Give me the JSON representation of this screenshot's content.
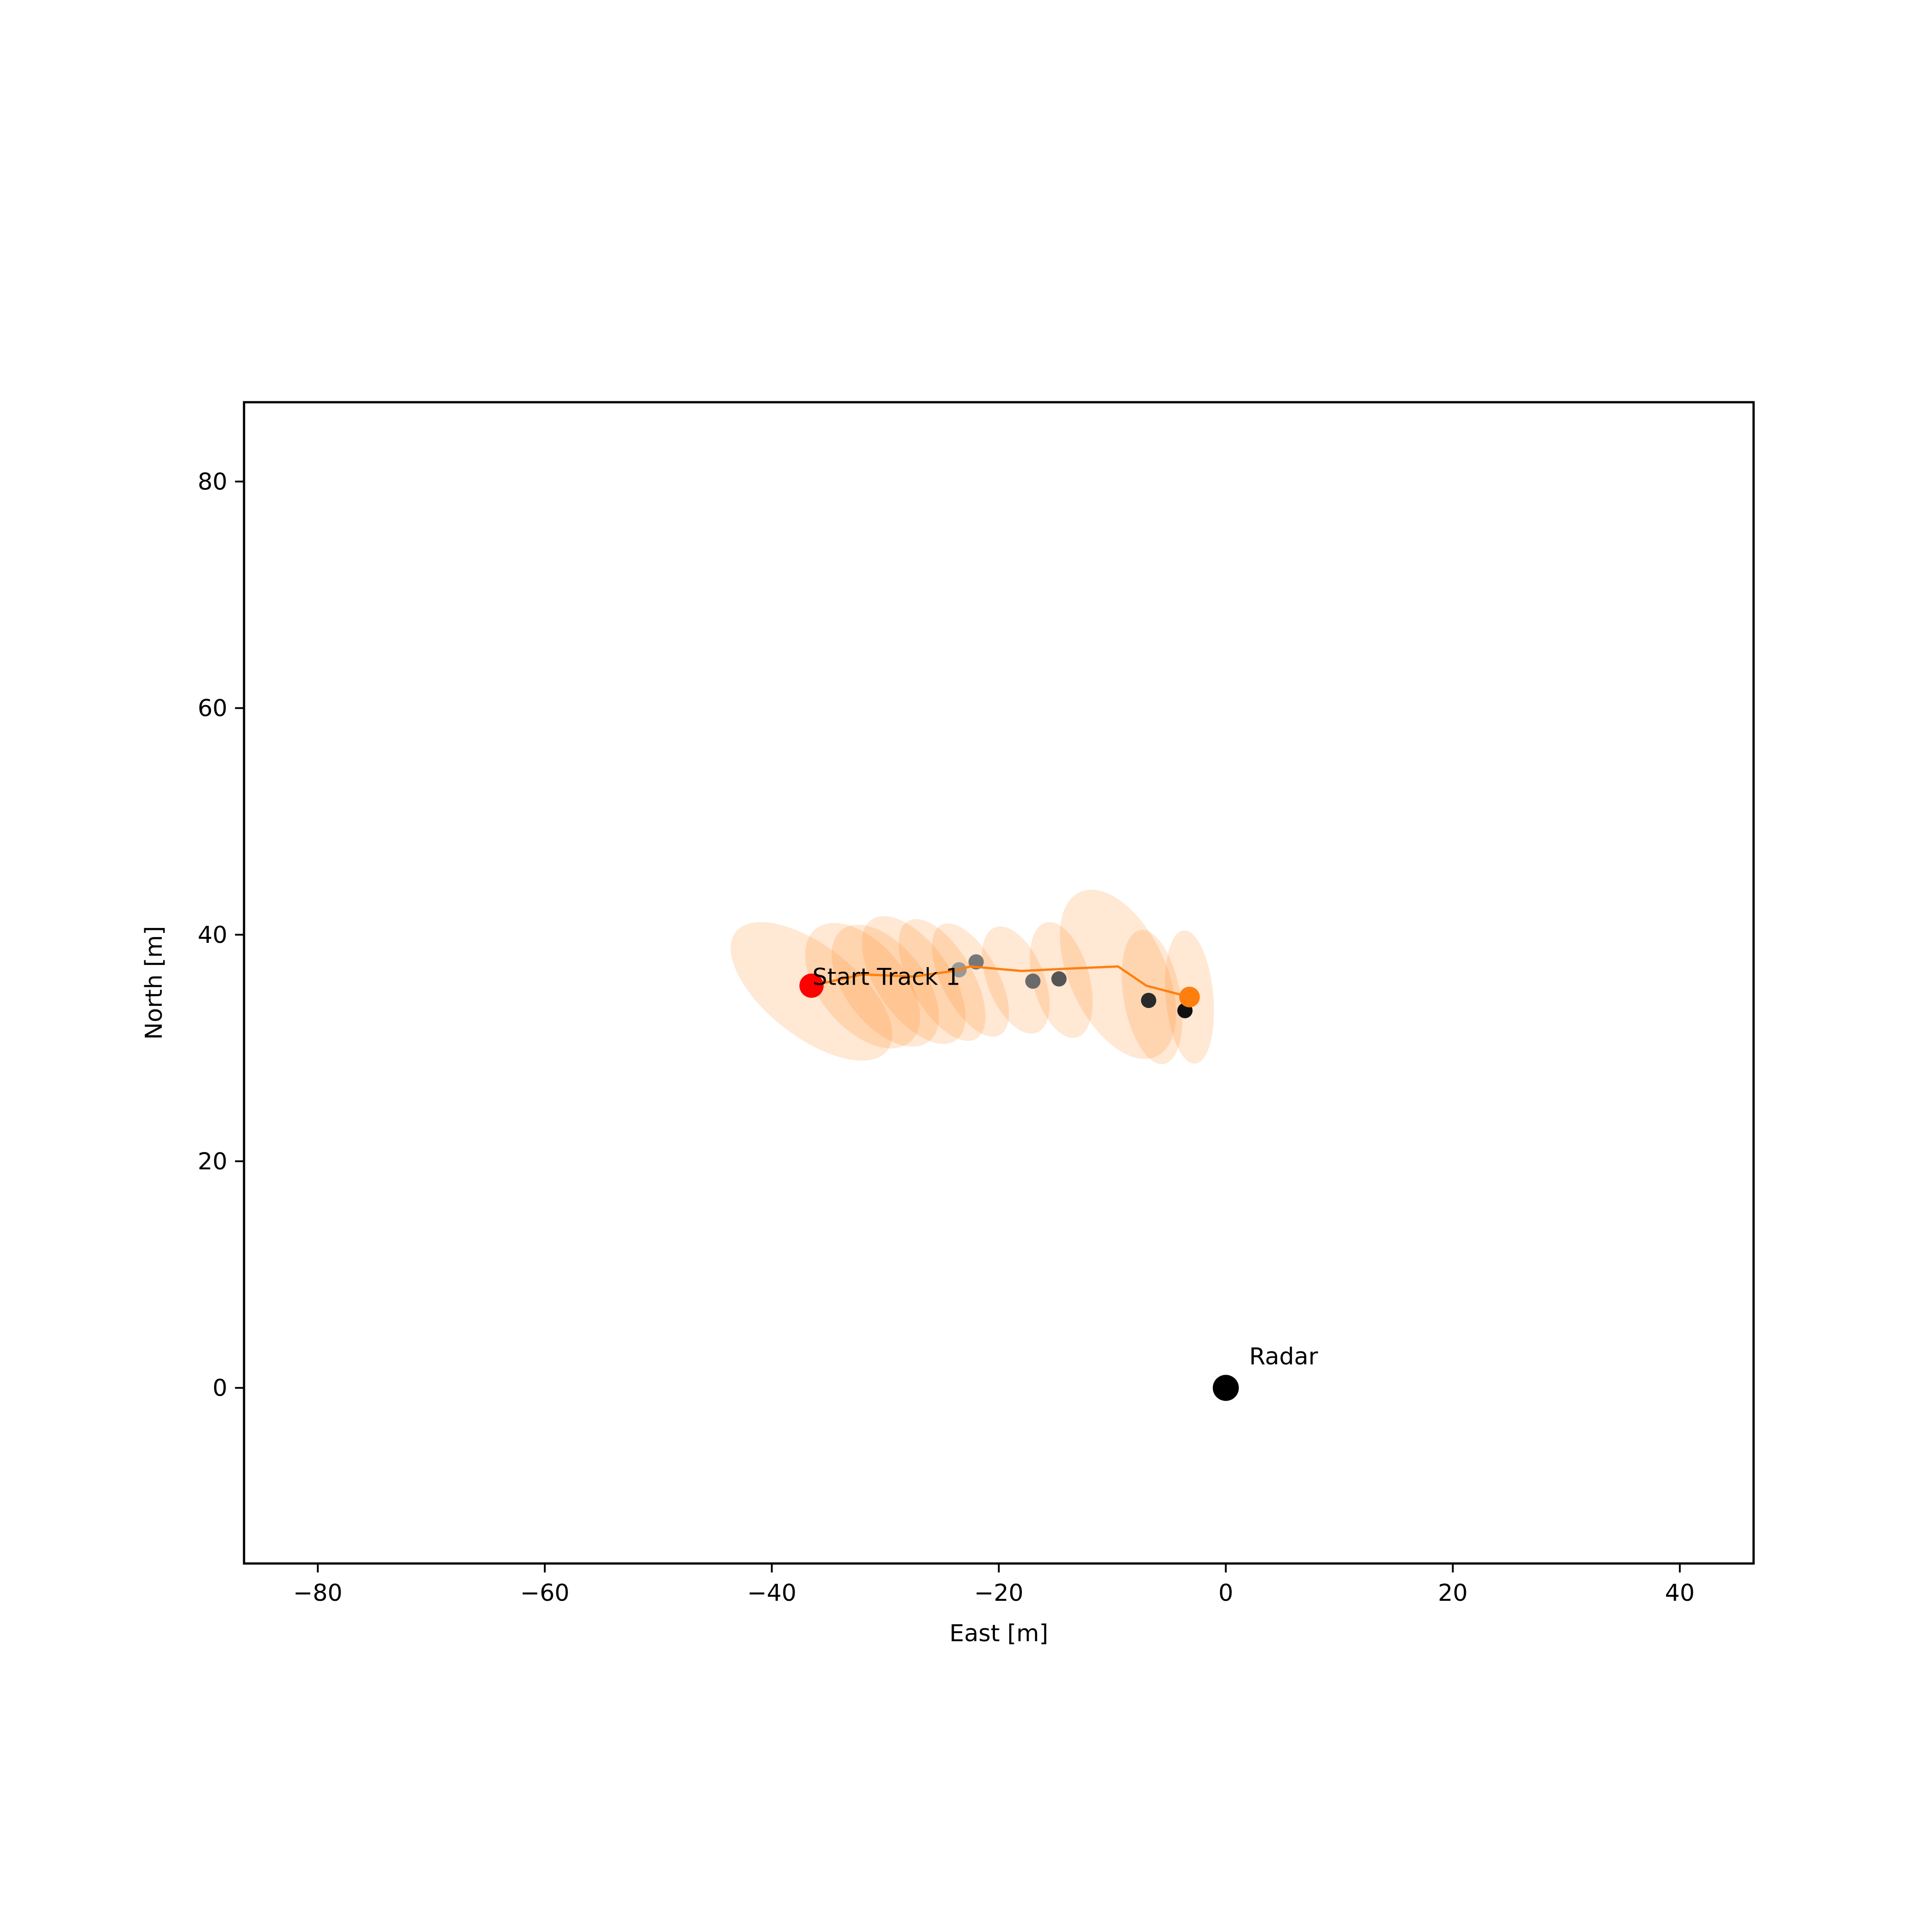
{
  "chart_data": {
    "type": "scatter",
    "title": "",
    "xlabel": "East [m]",
    "ylabel": "North [m]",
    "xlim": [
      -86.5,
      46.5
    ],
    "ylim": [
      -15.5,
      87.0
    ],
    "xticks": [
      -80,
      -60,
      -40,
      -20,
      0,
      20,
      40
    ],
    "xtick_labels": [
      "−80",
      "−60",
      "−40",
      "−20",
      "0",
      "20",
      "40"
    ],
    "yticks": [
      0,
      20,
      40,
      60,
      80
    ],
    "ytick_labels": [
      "0",
      "20",
      "40",
      "60",
      "80"
    ],
    "grid": false,
    "legend": "none",
    "radar": {
      "label": "Radar",
      "x": 0,
      "y": 0,
      "color": "#000000"
    },
    "track": {
      "label": "Start Track 1",
      "color": "#ff7f0e",
      "start_color": "#ff0000",
      "x": [
        -36.5,
        -32.0,
        -27.5,
        -24.0,
        -22.5,
        -18.0,
        -14.0,
        -9.5,
        -7.0,
        -3.2
      ],
      "y": [
        35.5,
        36.5,
        36.3,
        36.8,
        37.2,
        36.8,
        37.0,
        37.2,
        35.5,
        34.5
      ]
    },
    "uncertainty_ellipses": {
      "color": "#ff7f0e",
      "opacity": 0.18,
      "items": [
        {
          "cx": -36.5,
          "cy": 35.0,
          "width": 8.0,
          "height": 17.0,
          "angle_deg": 52
        },
        {
          "cx": -32.0,
          "cy": 35.5,
          "width": 7.5,
          "height": 13.0,
          "angle_deg": 40
        },
        {
          "cx": -30.0,
          "cy": 35.5,
          "width": 7.0,
          "height": 12.5,
          "angle_deg": 38
        },
        {
          "cx": -27.5,
          "cy": 36.0,
          "width": 6.5,
          "height": 13.0,
          "angle_deg": 35
        },
        {
          "cx": -25.0,
          "cy": 36.0,
          "width": 5.5,
          "height": 12.0,
          "angle_deg": 30
        },
        {
          "cx": -22.5,
          "cy": 36.0,
          "width": 5.0,
          "height": 11.0,
          "angle_deg": 28
        },
        {
          "cx": -18.5,
          "cy": 36.0,
          "width": 5.0,
          "height": 10.0,
          "angle_deg": 22
        },
        {
          "cx": -14.5,
          "cy": 36.0,
          "width": 5.0,
          "height": 10.5,
          "angle_deg": 15
        },
        {
          "cx": -9.5,
          "cy": 36.5,
          "width": 8.5,
          "height": 16.0,
          "angle_deg": 25
        },
        {
          "cx": -6.5,
          "cy": 34.5,
          "width": 5.0,
          "height": 12.0,
          "angle_deg": 10
        },
        {
          "cx": -3.2,
          "cy": 34.5,
          "width": 4.2,
          "height": 11.8,
          "angle_deg": 5
        }
      ]
    },
    "measurements": {
      "x": [
        -23.5,
        -22.0,
        -17.0,
        -14.7,
        -6.8,
        -3.6
      ],
      "y": [
        36.9,
        37.6,
        35.9,
        36.1,
        34.2,
        33.3
      ],
      "colors": [
        "#999999",
        "#777777",
        "#6a6a6a",
        "#555555",
        "#2a2a2a",
        "#111111"
      ]
    }
  }
}
